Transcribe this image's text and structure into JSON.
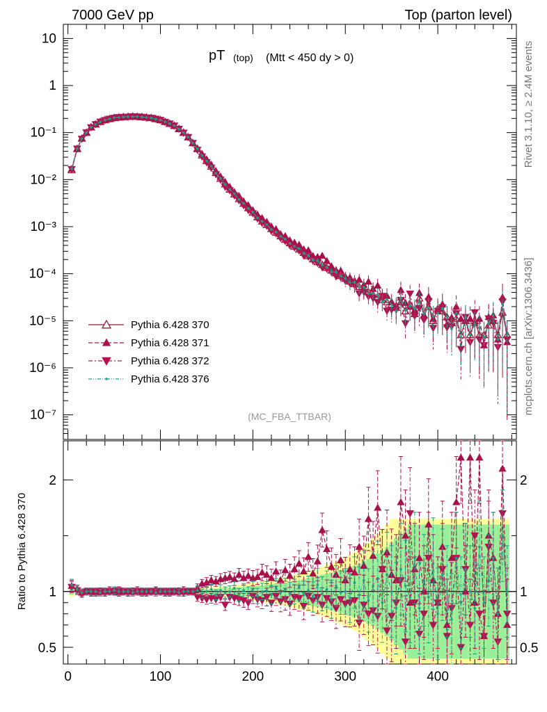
{
  "header": {
    "left": "7000 GeV pp",
    "right": "Top (parton level)"
  },
  "plot_title": {
    "main": "pT",
    "sub1": "(top)",
    "sub2": "(Mtt < 450 dy > 0)"
  },
  "watermark": "(MC_FBA_TTBAR)",
  "side_text": {
    "rivet": "Rivet 3.1.10, ≥ 2.4M events",
    "mcplots": "mcplots.cern.ch [arXiv:1306.3436]"
  },
  "ratio_ylabel": "Ratio to Pythia 6.428 370",
  "colors": {
    "s370": "#9b1b30",
    "s371": "#a8104a",
    "s372": "#b01450",
    "s376": "#1f9e89",
    "band_yellow": "#ffff99",
    "band_green": "#99ee99"
  },
  "chart_data": [
    {
      "type": "line",
      "panel": "main",
      "xlabel": "",
      "ylabel": "",
      "log_y": true,
      "xlim": [
        -5,
        485
      ],
      "ylim": [
        3e-08,
        20
      ],
      "y_ticks": [
        "10",
        "1",
        "10⁻¹",
        "10⁻²",
        "10⁻³",
        "10⁻⁴",
        "10⁻⁵",
        "10⁻⁶",
        "10⁻⁷"
      ],
      "legend_position": "bottom-left",
      "series": [
        {
          "name": "Pythia 6.428 370",
          "style": "solid",
          "marker": "open-triangle-up"
        },
        {
          "name": "Pythia 6.428 371",
          "style": "dashed",
          "marker": "filled-triangle-up"
        },
        {
          "name": "Pythia 6.428 372",
          "style": "dash-dot",
          "marker": "filled-triangle-down"
        },
        {
          "name": "Pythia 6.428 376",
          "style": "dash-dot-dot",
          "marker": "dot"
        }
      ],
      "x": [
        4,
        10,
        15,
        20,
        25,
        30,
        35,
        40,
        45,
        50,
        55,
        60,
        65,
        70,
        75,
        80,
        85,
        90,
        95,
        100,
        105,
        110,
        115,
        120,
        125,
        130,
        135,
        140,
        145,
        150,
        155,
        160,
        165,
        170,
        175,
        180,
        185,
        190,
        195,
        200,
        205,
        210,
        215,
        220,
        225,
        230,
        235,
        240,
        245,
        250,
        255,
        260,
        265,
        270,
        275,
        280,
        285,
        290,
        295,
        300,
        305,
        310,
        315,
        320,
        325,
        330,
        335,
        340,
        345,
        350,
        355,
        360,
        365,
        370,
        375,
        380,
        385,
        390,
        395,
        400,
        405,
        410,
        415,
        420,
        425,
        430,
        435,
        440,
        445,
        450,
        455,
        460,
        465,
        470,
        475
      ],
      "values_370": [
        0.016,
        0.045,
        0.075,
        0.1,
        0.13,
        0.15,
        0.17,
        0.185,
        0.195,
        0.205,
        0.21,
        0.215,
        0.218,
        0.22,
        0.218,
        0.215,
        0.21,
        0.205,
        0.195,
        0.185,
        0.17,
        0.155,
        0.14,
        0.12,
        0.1,
        0.08,
        0.06,
        0.045,
        0.033,
        0.025,
        0.019,
        0.014,
        0.0105,
        0.008,
        0.0062,
        0.0049,
        0.0039,
        0.0031,
        0.0025,
        0.002,
        0.0016,
        0.0013,
        0.0011,
        0.0009,
        0.00075,
        0.00063,
        0.00053,
        0.00045,
        0.00038,
        0.00033,
        0.00028,
        0.00024,
        0.000205,
        0.000178,
        0.000155,
        0.000135,
        0.000118,
        0.000103,
        9e-05,
        7.9e-05,
        6.9e-05,
        6.1e-05,
        5.3e-05,
        4.7e-05,
        4.1e-05,
        3.6e-05,
        3.2e-05,
        2.8e-05,
        2.5e-05,
        2.2e-05,
        1.9e-05,
        2.5e-05,
        1.6e-05,
        2.2e-05,
        1.4e-05,
        3e-05,
        1.3e-05,
        2e-05,
        1e-05,
        1.8e-05,
        1.6e-05,
        1.2e-05,
        9e-06,
        1.1e-05,
        5e-06,
        1e-05,
        5e-06,
        1e-05,
        5e-06,
        5e-06,
        8e-06,
        1e-05,
        5e-06,
        1.5e-05,
        5e-06
      ]
    },
    {
      "type": "line",
      "panel": "ratio",
      "ylabel": "Ratio to Pythia 6.428 370",
      "xlabel": "",
      "xlim": [
        -5,
        485
      ],
      "ylim": [
        0.35,
        2.35
      ],
      "y_ticks": [
        0.5,
        1,
        2
      ],
      "x_ticks": [
        0,
        100,
        200,
        300,
        400
      ],
      "reference_line": 1,
      "x": [
        4,
        10,
        15,
        20,
        25,
        30,
        35,
        40,
        45,
        50,
        55,
        60,
        65,
        70,
        75,
        80,
        85,
        90,
        95,
        100,
        105,
        110,
        115,
        120,
        125,
        130,
        135,
        140,
        145,
        150,
        155,
        160,
        165,
        170,
        175,
        180,
        185,
        190,
        195,
        200,
        205,
        210,
        215,
        220,
        225,
        230,
        235,
        240,
        245,
        250,
        255,
        260,
        265,
        270,
        275,
        280,
        285,
        290,
        295,
        300,
        305,
        310,
        315,
        320,
        325,
        330,
        335,
        340,
        345,
        350,
        355,
        360,
        365,
        370,
        375,
        380,
        385,
        390,
        395,
        400,
        405,
        410,
        415,
        420,
        425,
        430,
        435,
        440,
        445,
        450,
        455,
        460,
        465,
        470,
        475
      ],
      "series": [
        {
          "name": "Pythia 6.428 371",
          "values": [
            1.05,
            1.02,
            0.99,
            1.0,
            1.0,
            0.99,
            1.0,
            1.0,
            1.01,
            1.0,
            0.99,
            1.0,
            1.0,
            1.0,
            1.01,
            0.99,
            1.0,
            1.0,
            1.01,
            1.0,
            1.0,
            0.99,
            1.0,
            1.0,
            1.01,
            1.0,
            1.0,
            1.03,
            1.07,
            1.08,
            1.1,
            1.09,
            1.11,
            1.12,
            1.13,
            1.11,
            1.15,
            1.12,
            1.14,
            1.12,
            1.13,
            1.17,
            1.15,
            1.12,
            1.18,
            1.1,
            1.19,
            1.14,
            1.2,
            1.25,
            1.18,
            1.31,
            1.16,
            1.27,
            1.55,
            1.38,
            1.22,
            1.15,
            1.28,
            1.1,
            1.2,
            1.17,
            1.4,
            1.23,
            1.65,
            1.32,
            1.75,
            1.2,
            1.35,
            1.15,
            1.1,
            1.8,
            1.5,
            0.9,
            1.2,
            1.3,
            1.0,
            1.6,
            1.1,
            0.9,
            1.4,
            0.7,
            1.3,
            1.8,
            2.2,
            1.0,
            2.2,
            0.9,
            2.2,
            0.6,
            1.5,
            1.3,
            0.8,
            2.1,
            0.7
          ]
        },
        {
          "name": "Pythia 6.428 372",
          "values": [
            1.04,
            1.01,
            0.98,
            1.0,
            0.99,
            1.0,
            1.0,
            0.99,
            1.0,
            1.0,
            1.01,
            1.0,
            0.99,
            1.0,
            1.0,
            1.0,
            0.99,
            1.0,
            1.0,
            1.0,
            0.99,
            1.0,
            1.0,
            1.0,
            0.99,
            1.0,
            1.0,
            0.95,
            0.94,
            0.93,
            0.94,
            0.93,
            0.95,
            0.88,
            0.95,
            0.94,
            0.93,
            0.92,
            0.9,
            0.96,
            0.93,
            0.92,
            0.95,
            0.9,
            0.96,
            0.91,
            0.93,
            0.89,
            0.95,
            0.94,
            0.87,
            0.96,
            0.92,
            0.95,
            0.88,
            0.94,
            0.91,
            0.85,
            0.93,
            0.89,
            0.9,
            0.92,
            0.72,
            0.88,
            0.8,
            0.83,
            0.78,
            1.2,
            0.65,
            0.78,
            0.9,
            1.1,
            0.55,
            1.7,
            0.9,
            0.62,
            0.8,
            1.3,
            0.7,
            0.9,
            1.2,
            0.6,
            0.85,
            1.3,
            0.5,
            1.2,
            0.7,
            1.5,
            0.8,
            0.6,
            1.4,
            0.9,
            0.55,
            1.7,
            0.8
          ]
        },
        {
          "name": "Pythia 6.428 376",
          "values": [
            1.06,
            1.02,
            0.99,
            1.0,
            1.0,
            1.0,
            0.99,
            1.0,
            1.0,
            1.01,
            1.0,
            1.0,
            1.0,
            0.99,
            1.0,
            1.0,
            1.0,
            1.0,
            0.99,
            1.0,
            1.0,
            1.0,
            1.0,
            0.99,
            1.0,
            1.0,
            1.0,
            1.01,
            0.98,
            1.0,
            1.02,
            0.97,
            1.01,
            0.99,
            1.0,
            1.03,
            0.97,
            1.01,
            0.98,
            1.02,
            0.96,
            1.0,
            1.01,
            0.97,
            1.03,
            0.99,
            1.02,
            0.98,
            1.0,
            1.04,
            0.97,
            1.01,
            0.95,
            1.06,
            0.98,
            1.02,
            0.93,
            1.05,
            0.99,
            1.0,
            0.94,
            1.08,
            0.97,
            1.1,
            0.92,
            1.05,
            1.12,
            0.9,
            1.15,
            1.0,
            0.85,
            1.2,
            1.05,
            0.95,
            1.3,
            0.85,
            1.1,
            0.95,
            1.25,
            0.8,
            1.15,
            1.0,
            0.75,
            1.3,
            0.9,
            1.2,
            1.0,
            0.85,
            1.4,
            0.9,
            1.1,
            1.3,
            0.8,
            1.5,
            1.0
          ]
        }
      ],
      "band_yellow": [
        0.05,
        0.03,
        0.02,
        0.02,
        0.02,
        0.02,
        0.02,
        0.02,
        0.02,
        0.02,
        0.02,
        0.02,
        0.02,
        0.02,
        0.02,
        0.02,
        0.02,
        0.02,
        0.02,
        0.02,
        0.02,
        0.02,
        0.02,
        0.02,
        0.02,
        0.02,
        0.02,
        0.03,
        0.03,
        0.04,
        0.04,
        0.04,
        0.05,
        0.05,
        0.05,
        0.06,
        0.06,
        0.07,
        0.07,
        0.08,
        0.08,
        0.09,
        0.1,
        0.1,
        0.11,
        0.12,
        0.13,
        0.14,
        0.15,
        0.16,
        0.17,
        0.18,
        0.19,
        0.21,
        0.22,
        0.24,
        0.25,
        0.27,
        0.29,
        0.31,
        0.33,
        0.35,
        0.38,
        0.41,
        0.44,
        0.48,
        0.52,
        0.56,
        0.6,
        0.65,
        0.65,
        0.65,
        0.65,
        0.65,
        0.65,
        0.65,
        0.65,
        0.65,
        0.65,
        0.65,
        0.65,
        0.65,
        0.65,
        0.65,
        0.65,
        0.65,
        0.65,
        0.65,
        0.65,
        0.65,
        0.65,
        0.65,
        0.65,
        0.65,
        0.65
      ],
      "band_green": [
        0.03,
        0.02,
        0.01,
        0.01,
        0.01,
        0.01,
        0.01,
        0.01,
        0.01,
        0.01,
        0.01,
        0.01,
        0.01,
        0.01,
        0.01,
        0.01,
        0.01,
        0.01,
        0.01,
        0.01,
        0.01,
        0.01,
        0.01,
        0.01,
        0.01,
        0.01,
        0.01,
        0.015,
        0.02,
        0.02,
        0.02,
        0.025,
        0.03,
        0.03,
        0.03,
        0.035,
        0.04,
        0.04,
        0.045,
        0.05,
        0.05,
        0.055,
        0.06,
        0.065,
        0.07,
        0.075,
        0.08,
        0.09,
        0.095,
        0.1,
        0.11,
        0.12,
        0.13,
        0.14,
        0.15,
        0.16,
        0.17,
        0.18,
        0.19,
        0.2,
        0.22,
        0.23,
        0.25,
        0.27,
        0.29,
        0.31,
        0.34,
        0.37,
        0.4,
        0.44,
        0.48,
        0.52,
        0.56,
        0.6,
        0.6,
        0.6,
        0.6,
        0.6,
        0.6,
        0.6,
        0.6,
        0.6,
        0.6,
        0.6,
        0.6,
        0.6,
        0.6,
        0.6,
        0.6,
        0.6,
        0.6,
        0.6,
        0.6,
        0.6,
        0.6
      ]
    }
  ]
}
